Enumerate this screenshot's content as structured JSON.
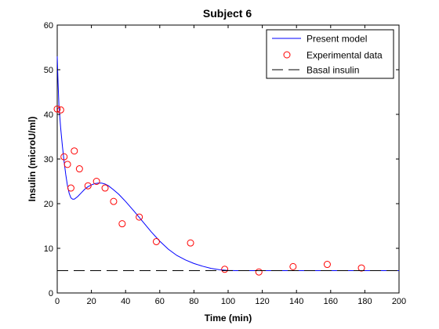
{
  "chart_data": {
    "type": "line",
    "title": "Subject 6",
    "xlabel": "Time (min)",
    "ylabel": "Insulin (microU/ml)",
    "xlim": [
      0,
      200
    ],
    "ylim": [
      0,
      60
    ],
    "xticks": [
      0,
      20,
      40,
      60,
      80,
      100,
      120,
      140,
      160,
      180,
      200
    ],
    "yticks": [
      0,
      10,
      20,
      30,
      40,
      50,
      60
    ],
    "grid": false,
    "legend_position": "top-right",
    "series": [
      {
        "name": "Present model",
        "style": "solid-line",
        "color": "#0000ff",
        "x": [
          0,
          0.5,
          1,
          2,
          3,
          4,
          5,
          6,
          7,
          8,
          9,
          10,
          12,
          14,
          16,
          18,
          20,
          22,
          24,
          26,
          28,
          30,
          33,
          36,
          40,
          45,
          50,
          55,
          60,
          65,
          70,
          75,
          80,
          85,
          90,
          95,
          100,
          105,
          110,
          120,
          140,
          160,
          180,
          200
        ],
        "y": [
          53,
          47,
          42,
          37,
          33,
          29.5,
          26.5,
          24,
          22.3,
          21.3,
          21,
          21,
          21.6,
          22.4,
          23.2,
          23.8,
          24.2,
          24.5,
          24.6,
          24.6,
          24.4,
          24.0,
          23.1,
          22.1,
          20.5,
          18.3,
          16.0,
          13.7,
          11.6,
          9.8,
          8.4,
          7.4,
          6.6,
          6.0,
          5.5,
          5.2,
          5.05,
          5.0,
          5.0,
          5.0,
          5.0,
          5.0,
          5.0,
          5.0
        ]
      },
      {
        "name": "Experimental data",
        "style": "circle-markers",
        "color": "#ff0000",
        "x": [
          0,
          2,
          4,
          6,
          8,
          10,
          13,
          18,
          23,
          28,
          33,
          38,
          48,
          58,
          78,
          98,
          118,
          138,
          158,
          178
        ],
        "y": [
          41.2,
          41.0,
          30.5,
          28.8,
          23.5,
          31.8,
          27.8,
          24.0,
          25.0,
          23.5,
          20.5,
          15.5,
          17.0,
          11.5,
          11.2,
          5.3,
          4.7,
          5.9,
          6.4,
          5.6
        ]
      },
      {
        "name": "Basal insulin",
        "style": "dashed-line",
        "color": "#000000",
        "x": [
          0,
          200
        ],
        "y": [
          5,
          5
        ]
      }
    ]
  }
}
